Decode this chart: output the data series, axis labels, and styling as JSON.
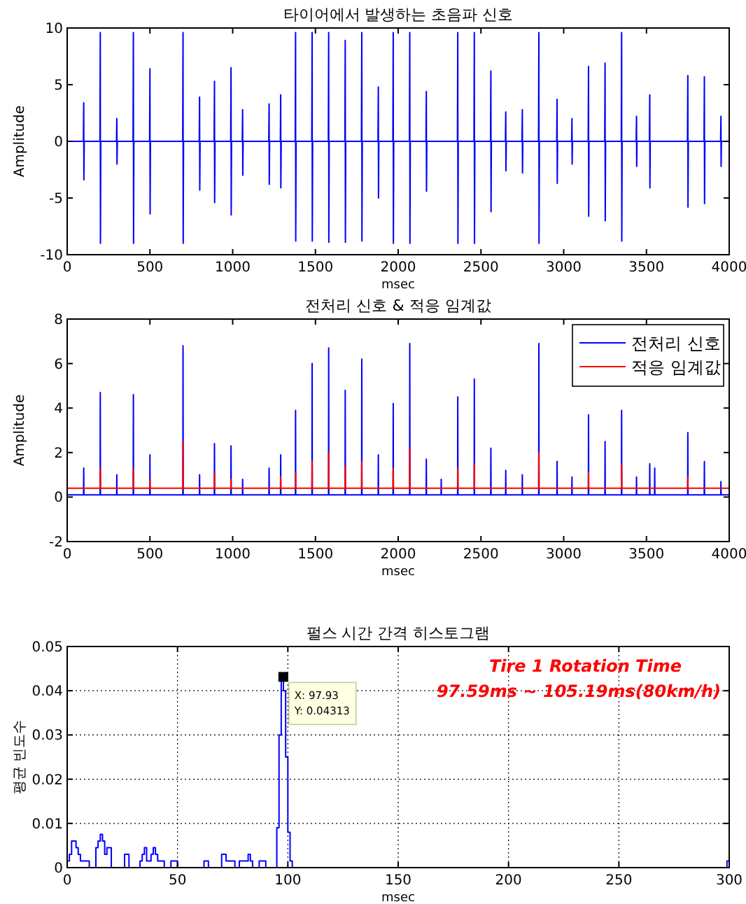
{
  "chart_data": [
    {
      "type": "line",
      "title": "타이어에서 발생하는 초음파 신호",
      "xlabel": "msec",
      "ylabel": "Amplitude",
      "xlim": [
        0,
        4000
      ],
      "xticks": [
        0,
        500,
        1000,
        1500,
        2000,
        2500,
        3000,
        3500,
        4000
      ],
      "ylim": [
        -10,
        10
      ],
      "yticks": [
        -10,
        -5,
        0,
        5,
        10
      ],
      "grid": false,
      "legend": false,
      "marker": "none",
      "series": [
        {
          "color": "#0000ff",
          "x": [
            0,
            98,
            100,
            101,
            103,
            198,
            200,
            201,
            203,
            298,
            300,
            301,
            303,
            398,
            400,
            401,
            403,
            498,
            500,
            501,
            503,
            698,
            700,
            701,
            703,
            798,
            800,
            801,
            803,
            888,
            890,
            891,
            893,
            988,
            990,
            991,
            993,
            1058,
            1060,
            1061,
            1063,
            1218,
            1220,
            1221,
            1223,
            1288,
            1290,
            1291,
            1293,
            1378,
            1380,
            1381,
            1383,
            1478,
            1480,
            1481,
            1483,
            1578,
            1580,
            1581,
            1583,
            1678,
            1680,
            1681,
            1683,
            1778,
            1780,
            1781,
            1783,
            1878,
            1880,
            1881,
            1883,
            1968,
            1970,
            1971,
            1973,
            2068,
            2070,
            2071,
            2073,
            2168,
            2170,
            2171,
            2173,
            2358,
            2360,
            2361,
            2363,
            2458,
            2460,
            2461,
            2463,
            2558,
            2560,
            2561,
            2563,
            2648,
            2650,
            2651,
            2653,
            2748,
            2750,
            2751,
            2753,
            2848,
            2850,
            2851,
            2853,
            2958,
            2960,
            2961,
            2963,
            3048,
            3050,
            3051,
            3053,
            3148,
            3150,
            3151,
            3153,
            3248,
            3250,
            3251,
            3253,
            3348,
            3350,
            3351,
            3353,
            3438,
            3440,
            3441,
            3443,
            3518,
            3520,
            3521,
            3523,
            3748,
            3750,
            3751,
            3753,
            3848,
            3850,
            3851,
            3853,
            3948,
            3950,
            3951,
            3953,
            4000
          ],
          "values": [
            0,
            0,
            3.4,
            -3.4,
            0,
            0,
            9.6,
            -9,
            0,
            0,
            2,
            -2,
            0,
            0,
            9.6,
            -9,
            0,
            0,
            6.4,
            -6.4,
            0,
            0,
            9.6,
            -9,
            0,
            0,
            3.9,
            -4.3,
            0,
            0,
            5.3,
            -5.4,
            0,
            0,
            6.5,
            -6.5,
            0,
            0,
            2.8,
            -3,
            0,
            0,
            3.3,
            -3.8,
            0,
            0,
            4.1,
            -4.1,
            0,
            0,
            9.6,
            -8.8,
            0,
            0,
            9.6,
            -8.8,
            0,
            0,
            9.6,
            -8.9,
            0,
            0,
            8.9,
            -8.9,
            0,
            0,
            9.6,
            -8.8,
            0,
            0,
            4.8,
            -5,
            0,
            0,
            9.6,
            -9,
            0,
            0,
            9.6,
            -9,
            0,
            0,
            4.4,
            -4.4,
            0,
            0,
            9.6,
            -9,
            0,
            0,
            9.6,
            -9,
            0,
            0,
            6.2,
            -6.2,
            0,
            0,
            2.6,
            -2.6,
            0,
            0,
            2.8,
            -2.8,
            0,
            0,
            9.6,
            -9,
            0,
            0,
            3.7,
            -3.7,
            0,
            0,
            2,
            -2,
            0,
            0,
            6.6,
            -6.6,
            0,
            0,
            6.9,
            -7,
            0,
            0,
            9.6,
            -8.8,
            0,
            0,
            2.2,
            -2.2,
            0,
            0,
            4.1,
            -4.1,
            0,
            0,
            5.8,
            -5.8,
            0,
            0,
            5.7,
            -5.5,
            0,
            0,
            2.2,
            -2.2,
            0,
            0
          ]
        }
      ]
    },
    {
      "type": "line",
      "title": "전처리 신호 & 적응 임계값",
      "xlabel": "msec",
      "ylabel": "Amplitude",
      "xlim": [
        0,
        4000
      ],
      "xticks": [
        0,
        500,
        1000,
        1500,
        2000,
        2500,
        3000,
        3500,
        4000
      ],
      "ylim": [
        -2,
        8
      ],
      "yticks": [
        -2,
        0,
        2,
        4,
        6,
        8
      ],
      "grid": false,
      "legend": "top right",
      "marker": "none",
      "series": [
        {
          "name": "전처리 신호",
          "color": "#0000ff",
          "x": [
            0,
            99,
            100,
            101,
            199,
            200,
            201,
            299,
            300,
            301,
            399,
            400,
            401,
            499,
            500,
            501,
            699,
            700,
            701,
            799,
            800,
            801,
            889,
            890,
            891,
            989,
            990,
            991,
            1059,
            1060,
            1061,
            1219,
            1220,
            1221,
            1289,
            1290,
            1291,
            1379,
            1380,
            1381,
            1479,
            1480,
            1481,
            1579,
            1580,
            1581,
            1679,
            1680,
            1681,
            1779,
            1780,
            1781,
            1879,
            1880,
            1881,
            1969,
            1970,
            1971,
            2069,
            2070,
            2071,
            2169,
            2170,
            2171,
            2259,
            2260,
            2261,
            2359,
            2360,
            2361,
            2459,
            2460,
            2461,
            2559,
            2560,
            2561,
            2649,
            2650,
            2651,
            2749,
            2750,
            2751,
            2849,
            2850,
            2851,
            2959,
            2960,
            2961,
            3049,
            3050,
            3051,
            3149,
            3150,
            3151,
            3249,
            3250,
            3251,
            3349,
            3350,
            3351,
            3439,
            3440,
            3441,
            3519,
            3520,
            3521,
            3549,
            3550,
            3551,
            3749,
            3750,
            3751,
            3849,
            3850,
            3851,
            3949,
            3950,
            3951,
            4000
          ],
          "values": [
            0.1,
            0.1,
            1.3,
            0.1,
            0.1,
            4.7,
            0.1,
            0.1,
            1,
            0.1,
            0.1,
            4.6,
            0.1,
            0.1,
            1.9,
            0.1,
            0.1,
            6.8,
            0.1,
            0.1,
            1,
            0.1,
            0.1,
            2.4,
            0.1,
            0.1,
            2.3,
            0.1,
            0.1,
            0.8,
            0.1,
            0.1,
            1.3,
            0.1,
            0.1,
            1.9,
            0.1,
            0.1,
            3.9,
            0.1,
            0.1,
            6,
            0.1,
            0.1,
            6.7,
            0.1,
            0.1,
            4.8,
            0.1,
            0.1,
            6.2,
            0.1,
            0.1,
            1.9,
            0.1,
            0.1,
            4.2,
            0.1,
            0.1,
            6.9,
            0.1,
            0.1,
            1.7,
            0.1,
            0.1,
            0.8,
            0.1,
            0.1,
            4.5,
            0.1,
            0.1,
            5.3,
            0.1,
            0.1,
            2.2,
            0.1,
            0.1,
            1.2,
            0.1,
            0.1,
            1,
            0.1,
            0.1,
            6.9,
            0.1,
            0.1,
            1.6,
            0.1,
            0.1,
            0.9,
            0.1,
            0.1,
            3.7,
            0.1,
            0.1,
            2.5,
            0.1,
            0.1,
            3.9,
            0.1,
            0.1,
            0.9,
            0.1,
            0.1,
            1.5,
            0.1,
            0.1,
            1.3,
            0.1,
            0.1,
            2.9,
            0.1,
            0.1,
            1.6,
            0.1,
            0.1,
            0.7,
            0.1,
            0.1
          ]
        },
        {
          "name": "적응 임계값",
          "color": "#ff0000",
          "x": [
            0,
            199,
            200,
            201,
            399,
            400,
            401,
            499,
            500,
            501,
            699,
            700,
            701,
            889,
            890,
            891,
            989,
            990,
            991,
            1289,
            1290,
            1291,
            1379,
            1380,
            1381,
            1479,
            1480,
            1481,
            1579,
            1580,
            1581,
            1679,
            1680,
            1681,
            1779,
            1780,
            1781,
            1969,
            1970,
            1971,
            2069,
            2070,
            2071,
            2359,
            2360,
            2361,
            2459,
            2460,
            2461,
            2849,
            2850,
            2851,
            3149,
            3150,
            3151,
            3349,
            3350,
            3351,
            3749,
            3750,
            3751,
            4000
          ],
          "values": [
            0.4,
            0.4,
            1.3,
            0.4,
            0.4,
            1.3,
            0.4,
            0.4,
            0.8,
            0.4,
            0.4,
            2.5,
            0.4,
            0.4,
            1.1,
            0.4,
            0.4,
            0.8,
            0.4,
            0.4,
            0.9,
            0.4,
            0.4,
            1.1,
            0.4,
            0.4,
            1.6,
            0.4,
            0.4,
            2,
            0.4,
            0.4,
            1.4,
            0.4,
            0.4,
            1.6,
            0.4,
            0.4,
            1.3,
            0.4,
            0.4,
            2.2,
            0.4,
            0.4,
            1.3,
            0.4,
            0.4,
            1.5,
            0.4,
            0.4,
            2,
            0.4,
            0.4,
            1.1,
            0.4,
            0.4,
            1.5,
            0.4,
            0.4,
            0.9,
            0.4,
            0.4
          ]
        }
      ]
    },
    {
      "type": "histogram",
      "title": "펄스 시간 간격 히스토그램",
      "xlabel": "msec",
      "ylabel": "평균 빈도수",
      "xlim": [
        0,
        300
      ],
      "xticks": [
        0,
        50,
        100,
        150,
        200,
        250,
        300
      ],
      "ylim": [
        0,
        0.05
      ],
      "yticks": [
        0,
        0.01,
        0.02,
        0.03,
        0.04,
        0.05
      ],
      "grid": true,
      "legend": false,
      "color": "#0000ff",
      "bins": [
        0,
        1,
        2,
        4,
        5,
        6,
        10,
        13,
        14,
        15,
        16,
        17,
        18,
        20,
        26,
        28,
        33,
        34,
        35,
        36,
        38,
        39,
        40,
        41,
        44,
        47,
        50,
        62,
        64,
        70,
        72,
        73,
        76,
        78,
        82,
        83,
        84,
        87,
        90,
        95,
        96,
        97,
        98,
        99,
        100,
        101,
        102,
        299,
        300
      ],
      "values": [
        0.0015,
        0.003,
        0.006,
        0.0045,
        0.003,
        0.0015,
        0,
        0.0045,
        0.006,
        0.0075,
        0.006,
        0.003,
        0.0045,
        0,
        0.003,
        0,
        0.0015,
        0.003,
        0.0045,
        0.0015,
        0.003,
        0.0045,
        0.003,
        0.0015,
        0,
        0.0015,
        0,
        0.0015,
        0,
        0.003,
        0.0015,
        0.0015,
        0,
        0.0015,
        0.003,
        0.0015,
        0,
        0.0015,
        0,
        0.009,
        0.03,
        0.04313,
        0.04,
        0.025,
        0.008,
        0.0015,
        0,
        0.0015
      ],
      "annotations": [
        "Tire 1 Rotation Time",
        "97.59ms ~ 105.19ms(80km/h)",
        {
          "text": "X: 97.93\nY: 0.04313",
          "x": 97.93,
          "y": 0.04313
        }
      ]
    }
  ]
}
